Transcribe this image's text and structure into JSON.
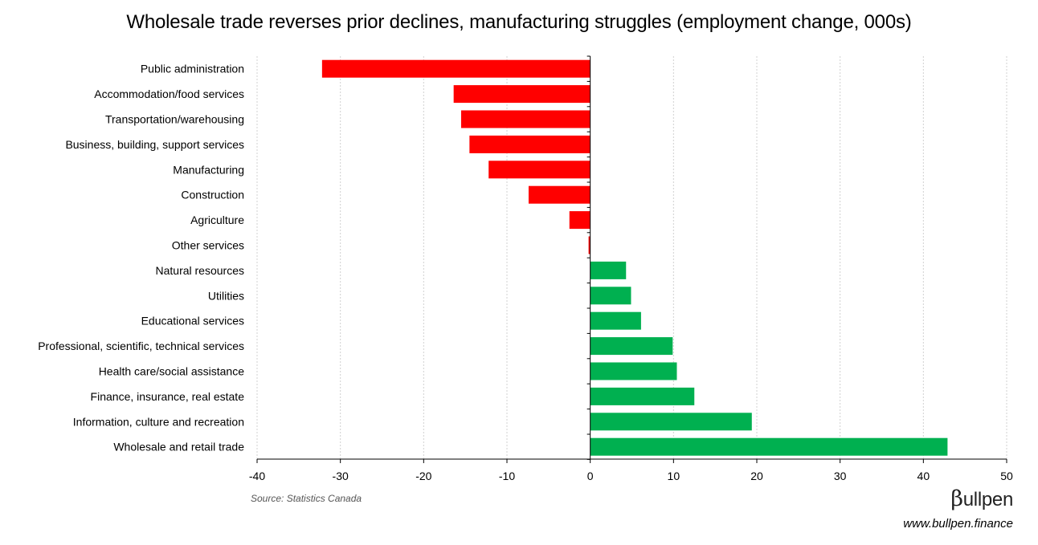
{
  "chart_data": {
    "type": "bar",
    "orientation": "horizontal",
    "title": "Wholesale trade reverses prior declines, manufacturing struggles (employment change, 000s)",
    "categories": [
      "Public administration",
      "Accommodation/food services",
      "Transportation/warehousing",
      "Business, building, support services",
      "Manufacturing",
      "Construction",
      "Agriculture",
      "Other services",
      "Natural resources",
      "Utilities",
      "Educational services",
      "Professional, scientific, technical services",
      "Health care/social assistance",
      "Finance, insurance, real estate",
      "Information, culture and recreation",
      "Wholesale and retail trade"
    ],
    "values": [
      -32.2,
      -16.4,
      -15.5,
      -14.5,
      -12.2,
      -7.4,
      -2.5,
      -0.2,
      4.3,
      4.9,
      6.1,
      9.9,
      10.4,
      12.5,
      19.4,
      42.9
    ],
    "xlim": [
      -40,
      50
    ],
    "x_ticks": [
      "-40",
      "-30",
      "-20",
      "-10",
      "0",
      "10",
      "20",
      "30",
      "40",
      "50"
    ],
    "grid": "vertical dotted",
    "colors": {
      "negative": "#ff0000",
      "positive": "#00b050",
      "grid": "#d0d0d0",
      "axis": "#000000"
    }
  },
  "source": "Source: Statistics Canada",
  "brand": {
    "beta": "β",
    "name": "ullpen",
    "url": "www.bullpen.finance"
  }
}
